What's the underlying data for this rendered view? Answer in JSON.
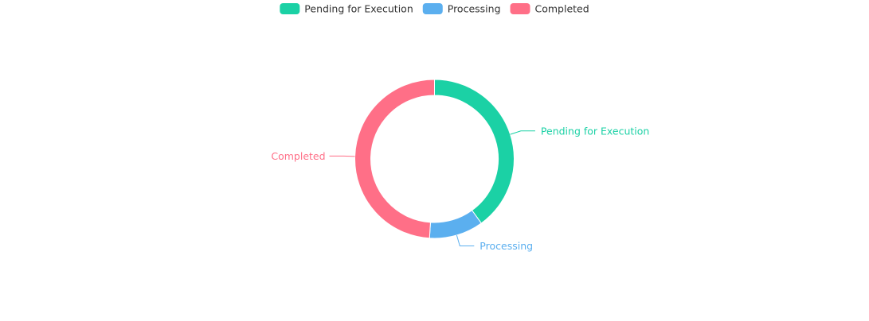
{
  "chart_data": {
    "type": "pie",
    "variant": "donut",
    "title": "",
    "legend": {
      "position": "top-center"
    },
    "series": [
      {
        "name": "Pending for Execution",
        "value": 40,
        "color": "#1bd1a5"
      },
      {
        "name": "Processing",
        "value": 11,
        "color": "#5bafef"
      },
      {
        "name": "Completed",
        "value": 49,
        "color": "#ff6f87"
      }
    ]
  }
}
